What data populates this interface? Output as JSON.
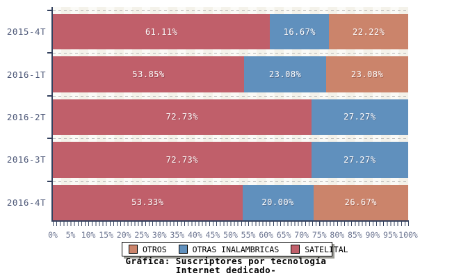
{
  "chart_data": {
    "type": "bar",
    "orientation": "horizontal",
    "stacked": true,
    "title_lines": [
      "Gráfica: Suscriptores por tecnología",
      "Internet dedicado-"
    ],
    "categories": [
      "2015-4T",
      "2016-1T",
      "2016-2T",
      "2016-3T",
      "2016-4T"
    ],
    "series": [
      {
        "name": "SATELITAL",
        "color": "#c05f6a",
        "values": [
          61.11,
          53.85,
          72.73,
          72.73,
          53.33
        ],
        "labels": [
          "61.11%",
          "53.85%",
          "72.73%",
          "72.73%",
          "53.33%"
        ]
      },
      {
        "name": "OTRAS INALAMBRICAS",
        "color": "#6090bd",
        "values": [
          16.67,
          23.08,
          27.27,
          27.27,
          20.0
        ],
        "labels": [
          "16.67%",
          "23.08%",
          "27.27%",
          "27.27%",
          "20.00%"
        ]
      },
      {
        "name": "OTROS",
        "color": "#cb846b",
        "values": [
          22.22,
          23.08,
          0,
          0,
          26.67
        ],
        "labels": [
          "22.22%",
          "23.08%",
          "",
          "",
          "26.67%"
        ]
      }
    ],
    "xlim": [
      0,
      100
    ],
    "xticks": [
      "0%",
      "5%",
      "10%",
      "15%",
      "20%",
      "25%",
      "30%",
      "35%",
      "40%",
      "45%",
      "50%",
      "55%",
      "60%",
      "65%",
      "70%",
      "75%",
      "80%",
      "85%",
      "90%",
      "95%",
      "100%"
    ],
    "grid": "horizontal-dashed",
    "legend": {
      "position": "bottom",
      "items": [
        {
          "label": "OTROS",
          "color": "#cb846b"
        },
        {
          "label": "OTRAS INALAMBRICAS",
          "color": "#6090bd"
        },
        {
          "label": "SATELITAL",
          "color": "#c05f6a"
        }
      ]
    }
  }
}
